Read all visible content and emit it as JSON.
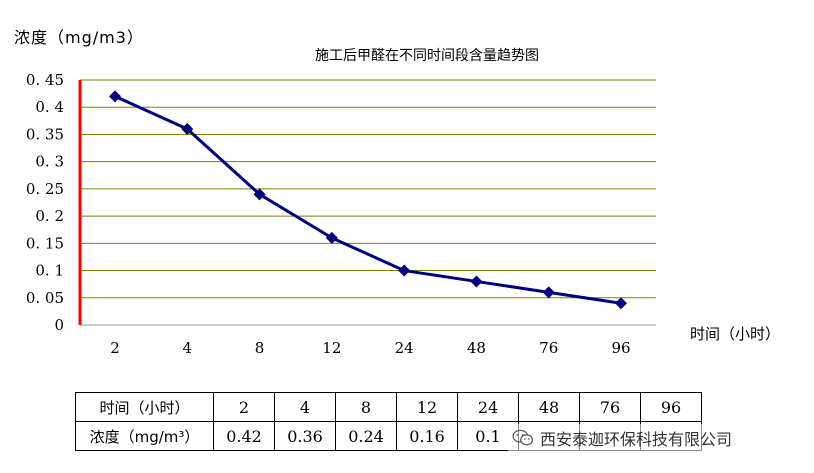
{
  "chart_data": {
    "type": "line",
    "title": "施工后甲醛在不同时间段含量趋势图",
    "ylabel": "浓度（mg/m3）",
    "xlabel": "时间（小时）",
    "categories": [
      "2",
      "4",
      "8",
      "12",
      "24",
      "48",
      "76",
      "96"
    ],
    "series": [
      {
        "values": [
          0.42,
          0.36,
          0.24,
          0.16,
          0.1,
          0.08,
          0.06,
          0.04
        ]
      }
    ],
    "ylim": [
      0,
      0.45
    ],
    "yticks": [
      "0",
      "0.05",
      "0.1",
      "0.15",
      "0.2",
      "0.25",
      "0.3",
      "0.35",
      "0.4",
      "0.45"
    ],
    "grid": true,
    "colors": {
      "line": "#000080",
      "grid": "#808000",
      "axis": "#ff0000"
    }
  },
  "table": {
    "row1_label": "时间（小时）",
    "row2_label": "浓度（mg/m³）",
    "times": [
      "2",
      "4",
      "8",
      "12",
      "24",
      "48",
      "76",
      "96"
    ],
    "values": [
      "0.42",
      "0.36",
      "0.24",
      "0.16",
      "0.1",
      "",
      "",
      ""
    ]
  },
  "watermark": {
    "text": "西安泰迦环保科技有限公司",
    "icon": "wechat-icon"
  }
}
